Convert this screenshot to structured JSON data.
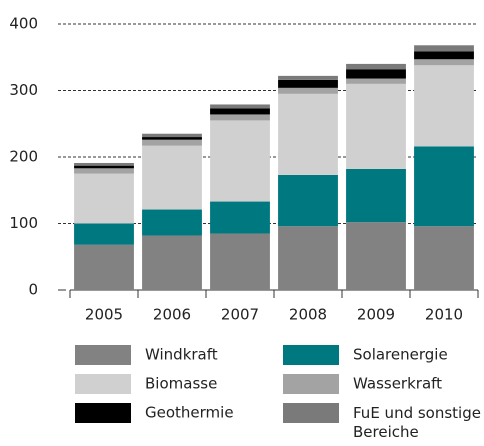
{
  "chart_data": {
    "type": "stacked_bar",
    "categories": [
      "2005",
      "2006",
      "2007",
      "2008",
      "2009",
      "2010"
    ],
    "series": [
      {
        "name": "Windkraft",
        "color": "#828282",
        "values": [
          68,
          82,
          85,
          96,
          102,
          96
        ]
      },
      {
        "name": "Solarenergie",
        "color": "#007880",
        "values": [
          32,
          39,
          48,
          77,
          80,
          120
        ]
      },
      {
        "name": "Biomasse",
        "color": "#d0d0d0",
        "values": [
          75,
          96,
          122,
          122,
          128,
          122
        ]
      },
      {
        "name": "Wasserkraft",
        "color": "#a3a3a3",
        "values": [
          8,
          9,
          9,
          9,
          8,
          9
        ]
      },
      {
        "name": "Geothermie",
        "color": "#000000",
        "values": [
          4,
          4,
          9,
          12,
          14,
          12
        ]
      },
      {
        "name": "FuE und sonstige Bereiche",
        "color": "#7a7a7a",
        "values": [
          4,
          5,
          6,
          6,
          8,
          9
        ]
      }
    ],
    "ylim": [
      0,
      400
    ],
    "yticks": [
      0,
      100,
      200,
      300,
      400
    ],
    "grid": true
  }
}
